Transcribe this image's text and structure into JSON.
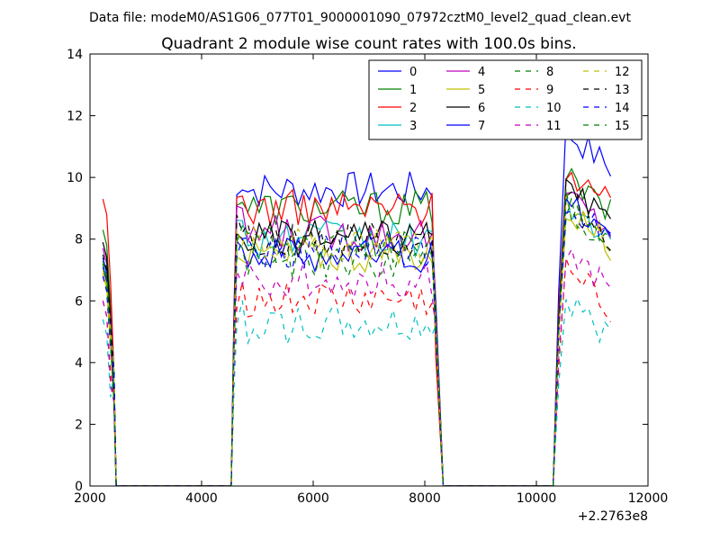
{
  "chart_data": {
    "type": "line",
    "suptitle": "Data file: modeM0/AS1G06_077T01_9000001090_07972cztM0_level2_quad_clean.evt",
    "title": "Quadrant 2 module wise count rates with 100.0s bins.",
    "xlabel": "",
    "ylabel": "",
    "x_offset_label": "+2.2763e8",
    "xlim": [
      2000,
      12000
    ],
    "ylim": [
      0,
      14
    ],
    "xticks": [
      2000,
      4000,
      6000,
      8000,
      10000,
      12000
    ],
    "yticks": [
      0,
      2,
      4,
      6,
      8,
      10,
      12,
      14
    ],
    "xtick_labels": [
      "2000",
      "4000",
      "6000",
      "8000",
      "10000",
      "12000"
    ],
    "ytick_labels": [
      "0",
      "2",
      "4",
      "6",
      "8",
      "10",
      "12",
      "14"
    ],
    "grid": false,
    "legend_position": "top-right",
    "legend_columns": 4,
    "series": [
      {
        "name": "0",
        "color": "#0000ff",
        "dash": "solid",
        "levels": [
          7.4,
          9.6,
          11.5
        ]
      },
      {
        "name": "1",
        "color": "#008000",
        "dash": "solid",
        "levels": [
          8.3,
          9.0,
          10.0
        ]
      },
      {
        "name": "2",
        "color": "#ff0000",
        "dash": "solid",
        "levels": [
          9.3,
          9.0,
          10.3
        ]
      },
      {
        "name": "3",
        "color": "#00bfbf",
        "dash": "solid",
        "levels": [
          7.2,
          8.0,
          9.2
        ]
      },
      {
        "name": "4",
        "color": "#bf00bf",
        "dash": "solid",
        "levels": [
          7.7,
          8.2,
          9.5
        ]
      },
      {
        "name": "5",
        "color": "#bfbf00",
        "dash": "solid",
        "levels": [
          6.9,
          7.5,
          9.0
        ]
      },
      {
        "name": "6",
        "color": "#000000",
        "dash": "solid",
        "levels": [
          7.9,
          8.0,
          9.6
        ]
      },
      {
        "name": "7",
        "color": "#0000ff",
        "dash": "solid",
        "levels": [
          7.1,
          7.5,
          9.3
        ]
      },
      {
        "name": "8",
        "color": "#008000",
        "dash": "dashed",
        "levels": [
          7.3,
          7.3,
          9.0
        ]
      },
      {
        "name": "9",
        "color": "#ff0000",
        "dash": "dashed",
        "levels": [
          6.0,
          6.0,
          7.0
        ]
      },
      {
        "name": "10",
        "color": "#00bfbf",
        "dash": "dashed",
        "levels": [
          5.4,
          5.2,
          6.0
        ]
      },
      {
        "name": "11",
        "color": "#bf00bf",
        "dash": "dashed",
        "levels": [
          6.0,
          6.7,
          7.6
        ]
      },
      {
        "name": "12",
        "color": "#bfbf00",
        "dash": "dashed",
        "levels": [
          7.0,
          7.8,
          9.0
        ]
      },
      {
        "name": "13",
        "color": "#000000",
        "dash": "dashed",
        "levels": [
          7.5,
          8.0,
          9.3
        ]
      },
      {
        "name": "14",
        "color": "#0000ff",
        "dash": "dashed",
        "levels": [
          6.8,
          7.6,
          9.1
        ]
      },
      {
        "name": "15",
        "color": "#008000",
        "dash": "dashed",
        "levels": [
          7.2,
          7.8,
          9.2
        ]
      }
    ]
  }
}
